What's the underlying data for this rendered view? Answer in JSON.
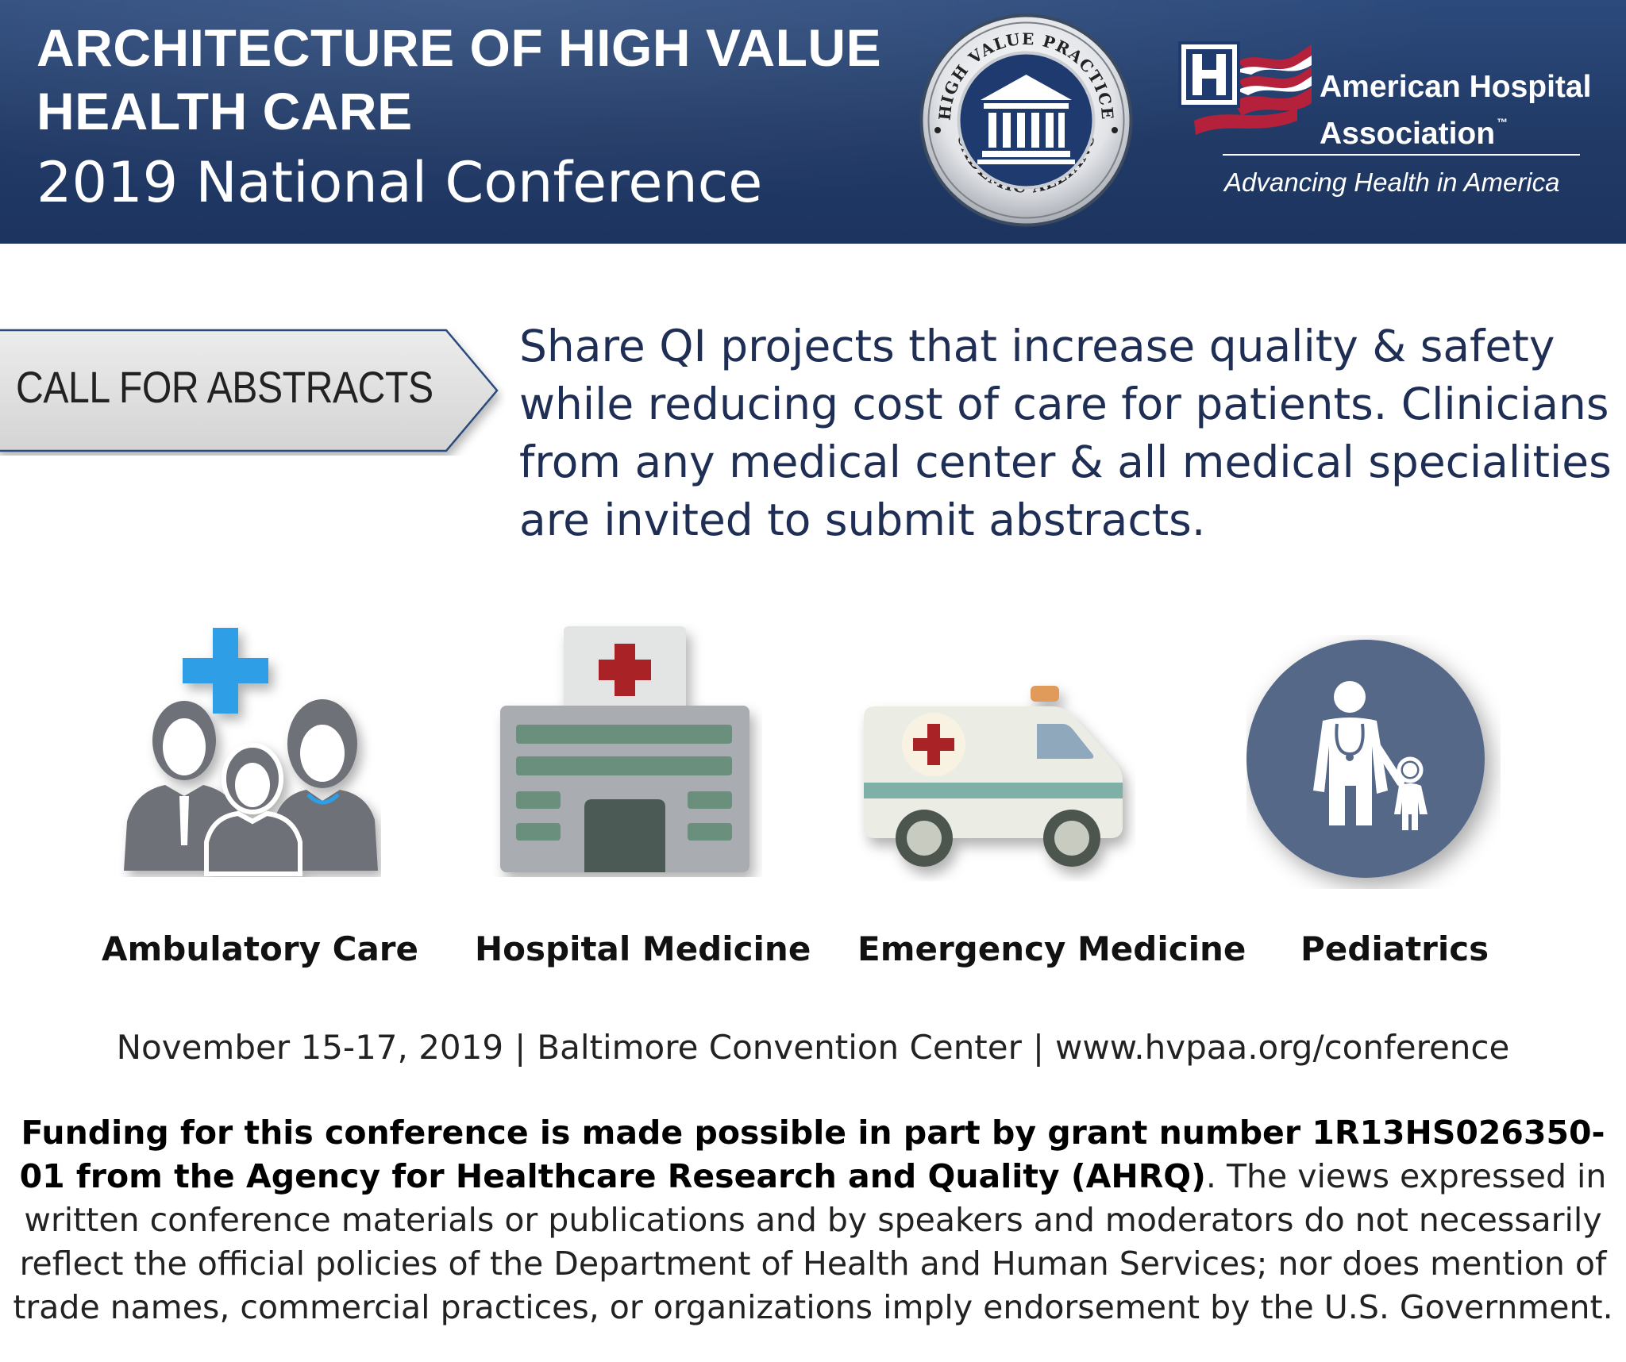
{
  "header": {
    "title_line1": "ARCHITECTURE OF HIGH VALUE",
    "title_line2": "HEALTH CARE",
    "subtitle": "2019 National Conference",
    "seal": {
      "text_top": "HIGH VALUE PRACTICE",
      "text_bottom": "ACADEMIC ALLIANCE",
      "icon": "building-columns-icon"
    },
    "aha": {
      "name_line1": "American Hospital",
      "name_line2": "Association",
      "trademark": "™",
      "tagline": "Advancing Health in America",
      "logo_icon": "aha-flag-h-logo"
    }
  },
  "call": {
    "label": "CALL FOR ABSTRACTS",
    "blurb": "Share QI projects that increase quality & safety while reducing cost of care for patients. Clinicians from any medical center & all medical specialities are invited to submit abstracts."
  },
  "specialties": [
    {
      "label": "Ambulatory Care",
      "icon": "family-with-cross-icon"
    },
    {
      "label": "Hospital Medicine",
      "icon": "hospital-building-icon"
    },
    {
      "label": "Emergency Medicine",
      "icon": "ambulance-icon"
    },
    {
      "label": "Pediatrics",
      "icon": "doctor-with-child-icon"
    }
  ],
  "event": {
    "dates": "November 15-17, 2019",
    "separator": "|",
    "venue": "Baltimore Convention Center",
    "url": "www.hvpaa.org/conference"
  },
  "disclaimer": {
    "bold": "Funding for this conference is made possible in part by grant number 1R13HS026350-01 from the Agency for Healthcare Research and Quality (AHRQ)",
    "rest": ". The views expressed in written conference materials or publications and by speakers and moderators do not necessarily reflect the official policies of the Department of Health and Human Services; nor does mention of trade names, commercial practices, or organizations imply endorsement by the U.S. Government."
  },
  "colors": {
    "header_blue": "#213a66",
    "seal_blue": "#1f3a6e",
    "aha_red": "#b5213b",
    "text_navy": "#1f2e54",
    "icon_gray": "#6e7178",
    "cross_blue": "#2f9ee6",
    "cross_red": "#a82128",
    "hospital_green": "#6b8f7c",
    "pediatrics_circle": "#566888"
  }
}
